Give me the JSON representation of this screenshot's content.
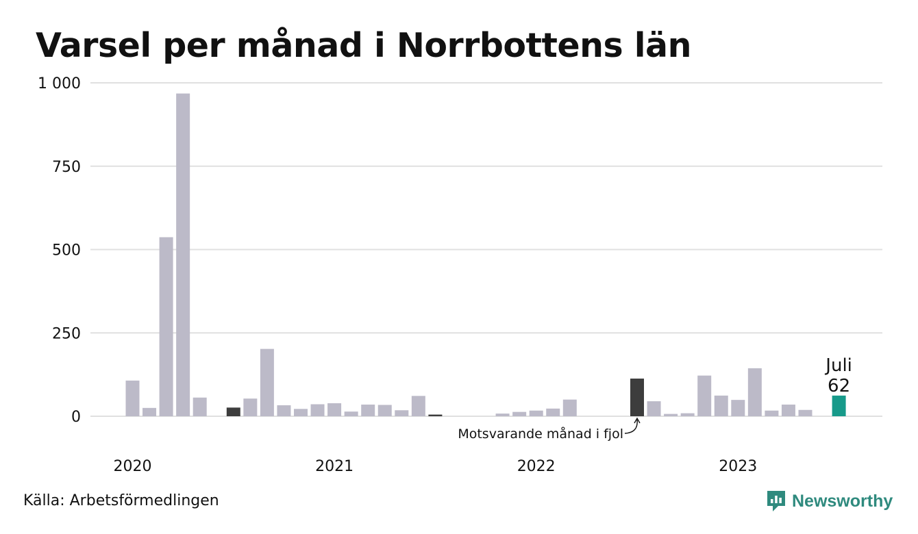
{
  "chart_data": {
    "type": "bar",
    "title": "Varsel per månad i Norrbottens län",
    "source": "Källa: Arbetsförmedlingen",
    "brand": "Newsworthy",
    "yticks": [
      {
        "value": 0,
        "label": "0"
      },
      {
        "value": 250,
        "label": "250"
      },
      {
        "value": 500,
        "label": "500"
      },
      {
        "value": 750,
        "label": "750"
      },
      {
        "value": 1000,
        "label": "1 000"
      }
    ],
    "ylim": [
      0,
      1000
    ],
    "xlim": [
      "2019-10",
      "2023-10"
    ],
    "year_labels": [
      {
        "label": "2020",
        "month": "2020-01"
      },
      {
        "label": "2021",
        "month": "2021-01"
      },
      {
        "label": "2022",
        "month": "2022-01"
      },
      {
        "label": "2023",
        "month": "2023-01"
      }
    ],
    "months": [
      "2020-01",
      "2020-02",
      "2020-03",
      "2020-04",
      "2020-05",
      "2020-06",
      "2020-07",
      "2020-08",
      "2020-09",
      "2020-10",
      "2020-11",
      "2020-12",
      "2021-01",
      "2021-02",
      "2021-03",
      "2021-04",
      "2021-05",
      "2021-06",
      "2021-07",
      "2021-08",
      "2021-09",
      "2021-10",
      "2021-11",
      "2021-12",
      "2022-01",
      "2022-02",
      "2022-03",
      "2022-04",
      "2022-05",
      "2022-06",
      "2022-07",
      "2022-08",
      "2022-09",
      "2022-10",
      "2022-11",
      "2022-12",
      "2023-01",
      "2023-02",
      "2023-03",
      "2023-04",
      "2023-05",
      "2023-06",
      "2023-07"
    ],
    "values": [
      107,
      25,
      537,
      968,
      56,
      0,
      26,
      53,
      202,
      33,
      22,
      36,
      39,
      14,
      35,
      34,
      18,
      61,
      5,
      0,
      0,
      0,
      8,
      13,
      17,
      23,
      50,
      0,
      0,
      0,
      113,
      45,
      7,
      9,
      122,
      62,
      49,
      144,
      17,
      35,
      19,
      0,
      62
    ],
    "highlight_months": [
      "2020-07",
      "2021-07",
      "2022-07"
    ],
    "current_month": "2023-07",
    "current_label": "Juli",
    "current_value_label": "62",
    "annotation": "Motsvarande månad i fjol",
    "colors": {
      "bar": "#bcbac8",
      "highlight": "#3d3d3d",
      "current": "#179a8a",
      "grid": "#e0e0e0",
      "brand": "#2f8a7e"
    }
  }
}
